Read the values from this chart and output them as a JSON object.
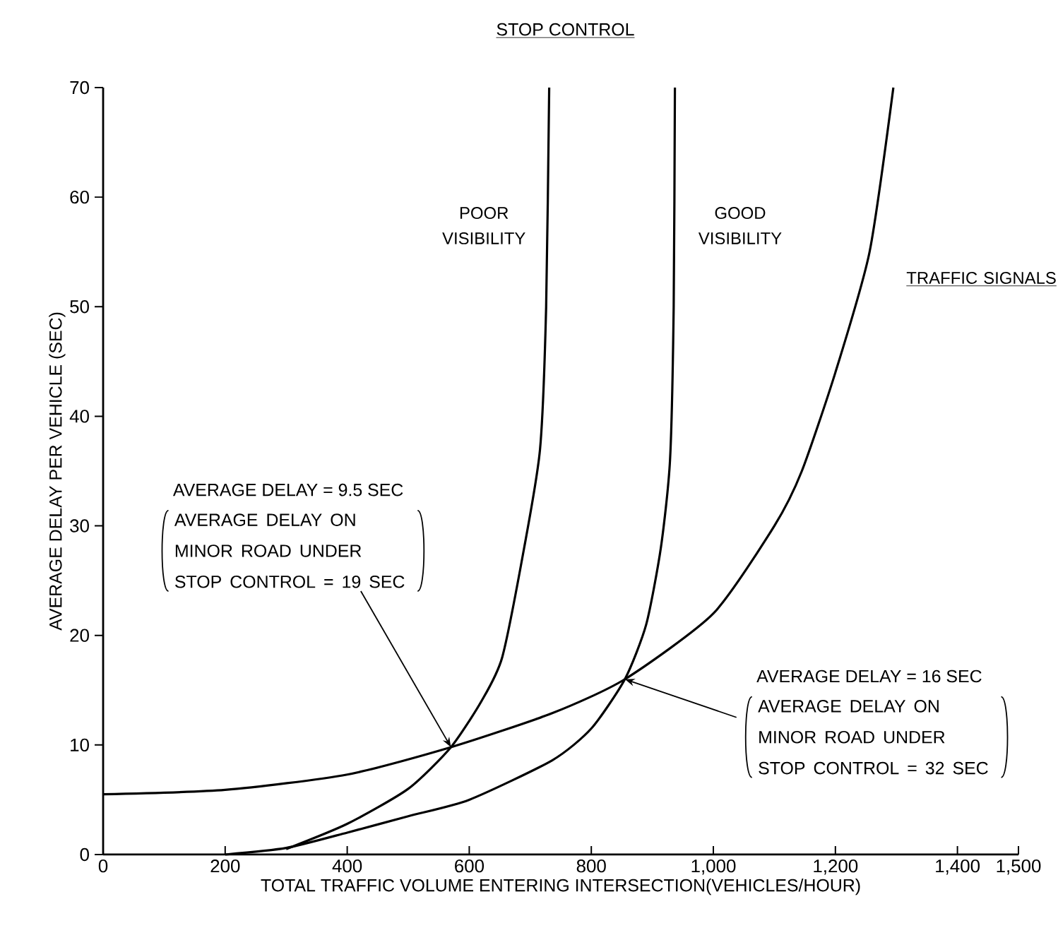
{
  "chart_data": {
    "type": "line",
    "title": "STOP CONTROL",
    "xlabel": "TOTAL TRAFFIC VOLUME ENTERING INTERSECTION(VEHICLES/HOUR)",
    "ylabel": "AVERAGE DELAY PER VEHICLE (SEC)",
    "xlim": [
      0,
      1500
    ],
    "ylim": [
      0,
      70
    ],
    "xticks": [
      0,
      200,
      400,
      600,
      800,
      {
        "value": 1000,
        "label": "1,000"
      },
      {
        "value": 1200,
        "label": "1,200"
      },
      {
        "value": 1400,
        "label": "1,400"
      },
      {
        "value": 1500,
        "label": "1,500"
      }
    ],
    "yticks": [
      0,
      10,
      20,
      30,
      40,
      50,
      60,
      70
    ],
    "marker": "none",
    "line_style": "solid",
    "series": [
      {
        "name": "POOR VISIBILITY",
        "color": "#000000",
        "x": [
          300,
          400,
          500,
          570,
          620,
          654,
          690,
          716,
          726,
          731
        ],
        "values": [
          0.5,
          2.8,
          6,
          9.8,
          14,
          18,
          28,
          37,
          50,
          70
        ]
      },
      {
        "name": "GOOD VISIBILITY",
        "color": "#000000",
        "x": [
          200,
          300,
          400,
          500,
          600,
          736,
          800,
          855,
          890,
          914,
          929,
          935,
          937
        ],
        "values": [
          0,
          0.6,
          2,
          3.5,
          5,
          8.6,
          11.5,
          16,
          21,
          28,
          36,
          50,
          70
        ]
      },
      {
        "name": "TRAFFIC SIGNALS",
        "color": "#000000",
        "x": [
          0,
          200,
          400,
          570,
          736,
          855,
          1000,
          1100,
          1145,
          1200,
          1256,
          1295
        ],
        "values": [
          5.5,
          5.9,
          7.3,
          9.8,
          12.9,
          16,
          22,
          30,
          35,
          44,
          55,
          70
        ]
      }
    ],
    "annotations": [
      "AVERAGE DELAY = 9.5 SEC",
      {
        "text": "AVERAGE DELAY ON MINOR ROAD UNDER STOP CONTROL = 19 SEC",
        "x": 570,
        "y": 9.8
      },
      "AVERAGE DELAY = 16 SEC",
      {
        "text": "AVERAGE DELAY ON MINOR ROAD UNDER STOP CONTROL = 32 SEC",
        "x": 855,
        "y": 16
      }
    ]
  }
}
